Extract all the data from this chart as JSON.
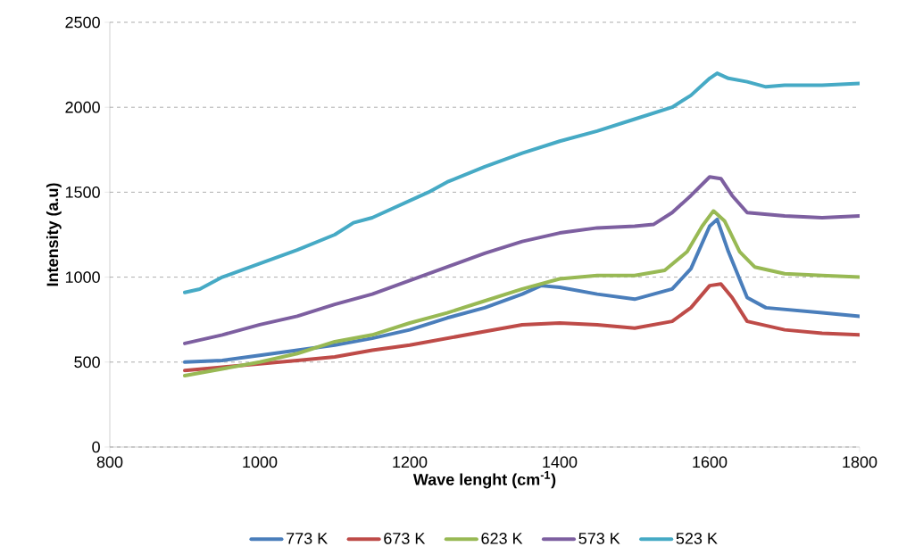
{
  "chart_data": {
    "type": "line",
    "xlabel": "Wave lenght (cm$^{-1}$)",
    "ylabel": "Intensity (a.u)",
    "xlim": [
      800,
      1800
    ],
    "xticks": [
      800,
      1000,
      1200,
      1400,
      1600,
      1800
    ],
    "ylim": [
      0,
      2500
    ],
    "yticks": [
      0,
      500,
      1000,
      1500,
      2000,
      2500
    ],
    "grid": "y",
    "legend": "bottom",
    "marker": "none",
    "line_style": "solid",
    "series": [
      {
        "name": "773 K",
        "color": "#4a7ebb",
        "x": [
          900,
          950,
          1000,
          1050,
          1100,
          1150,
          1200,
          1250,
          1300,
          1350,
          1375,
          1400,
          1450,
          1500,
          1550,
          1575,
          1600,
          1610,
          1625,
          1650,
          1675,
          1700,
          1750,
          1800
        ],
        "values": [
          500,
          510,
          540,
          570,
          600,
          640,
          690,
          760,
          820,
          900,
          950,
          940,
          900,
          870,
          930,
          1050,
          1300,
          1340,
          1150,
          880,
          820,
          810,
          790,
          770
        ]
      },
      {
        "name": "673 K",
        "color": "#be4b48",
        "x": [
          900,
          950,
          1000,
          1050,
          1100,
          1150,
          1200,
          1250,
          1300,
          1350,
          1400,
          1450,
          1500,
          1550,
          1575,
          1600,
          1615,
          1630,
          1650,
          1700,
          1750,
          1800
        ],
        "values": [
          450,
          470,
          490,
          510,
          530,
          570,
          600,
          640,
          680,
          720,
          730,
          720,
          700,
          740,
          820,
          950,
          960,
          880,
          740,
          690,
          670,
          660
        ]
      },
      {
        "name": "623 K",
        "color": "#98b954",
        "x": [
          900,
          950,
          1000,
          1050,
          1100,
          1150,
          1200,
          1250,
          1300,
          1350,
          1400,
          1450,
          1500,
          1540,
          1570,
          1590,
          1605,
          1620,
          1640,
          1660,
          1700,
          1750,
          1800
        ],
        "values": [
          420,
          460,
          500,
          550,
          620,
          660,
          730,
          790,
          860,
          930,
          990,
          1010,
          1010,
          1040,
          1150,
          1300,
          1390,
          1330,
          1150,
          1060,
          1020,
          1010,
          1000
        ]
      },
      {
        "name": "573 K",
        "color": "#7d5fa0",
        "x": [
          900,
          950,
          1000,
          1050,
          1100,
          1150,
          1200,
          1250,
          1300,
          1350,
          1400,
          1450,
          1500,
          1525,
          1550,
          1575,
          1600,
          1615,
          1630,
          1650,
          1700,
          1750,
          1800
        ],
        "values": [
          610,
          660,
          720,
          770,
          840,
          900,
          980,
          1060,
          1140,
          1210,
          1260,
          1290,
          1300,
          1310,
          1380,
          1480,
          1590,
          1580,
          1480,
          1380,
          1360,
          1350,
          1360
        ]
      },
      {
        "name": "523 K",
        "color": "#46aac5",
        "x": [
          900,
          920,
          950,
          975,
          1000,
          1050,
          1100,
          1125,
          1150,
          1200,
          1225,
          1250,
          1300,
          1350,
          1400,
          1450,
          1500,
          1550,
          1575,
          1600,
          1610,
          1625,
          1650,
          1675,
          1700,
          1750,
          1800
        ],
        "values": [
          910,
          930,
          1000,
          1040,
          1080,
          1160,
          1250,
          1320,
          1350,
          1450,
          1500,
          1560,
          1650,
          1730,
          1800,
          1860,
          1930,
          2000,
          2070,
          2170,
          2200,
          2170,
          2150,
          2120,
          2130,
          2130,
          2140
        ]
      }
    ]
  }
}
